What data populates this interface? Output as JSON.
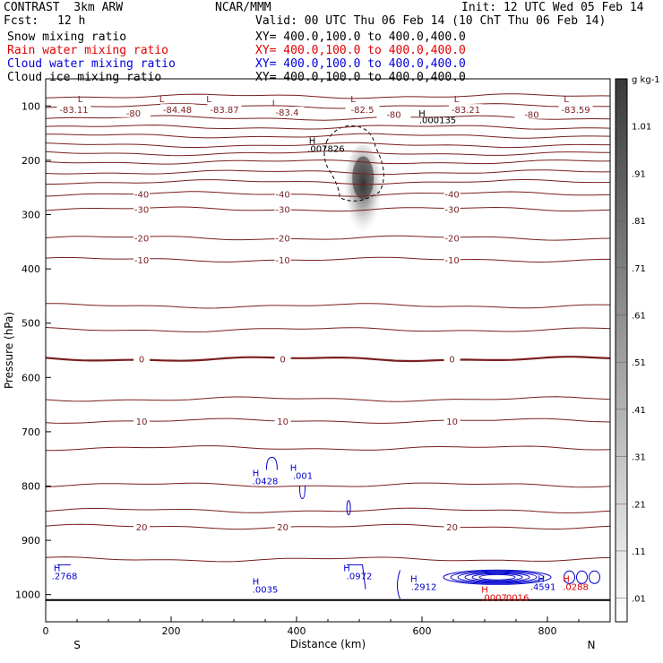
{
  "header": {
    "model": "CONTRAST  3km ARW",
    "center": "NCAR/MMM",
    "init": "Init: 12 UTC Wed 05 Feb 14",
    "fcst_label": "Fcst:",
    "fcst_value": "12 h",
    "valid": "Valid: 00 UTC Thu 06 Feb 14 (10 ChT Thu 06 Feb 14)"
  },
  "fields": [
    {
      "name": "Snow mixing ratio",
      "xy": "XY= 400.0,100.0 to 400.0,400.0"
    },
    {
      "name": "Rain water mixing ratio",
      "xy": "XY= 400.0,100.0 to 400.0,400.0"
    },
    {
      "name": "Cloud water mixing ratio",
      "xy": "XY= 400.0,100.0 to 400.0,400.0"
    },
    {
      "name": "Cloud ice mixing ratio",
      "xy": "XY= 400.0,100.0 to 400.0,400.0"
    }
  ],
  "colors": {
    "temp": "#7a1e1e",
    "cloud": "#0000cc",
    "rain": "#e00000",
    "ice": "#000000"
  },
  "chart_data": {
    "type": "contour",
    "xlabel": "Distance (km)",
    "ylabel": "Pressure (hPa)",
    "xlim": [
      0,
      900
    ],
    "ylim": [
      1050,
      50
    ],
    "xticks": [
      0,
      200,
      400,
      600,
      800
    ],
    "yticks": [
      100,
      200,
      300,
      400,
      500,
      600,
      700,
      800,
      900,
      1000
    ],
    "end_labels": {
      "left": "S",
      "right": "N"
    },
    "colorbar": {
      "unit": "g kg-1",
      "labels": [
        ".01",
        ".11",
        ".21",
        ".31",
        ".41",
        ".51",
        ".61",
        ".71",
        ".81",
        ".91",
        "1.01"
      ],
      "range": [
        0,
        1.1
      ]
    },
    "temperature_contours": [
      {
        "p": 82,
        "label": null
      },
      {
        "p": 100,
        "label": null
      },
      {
        "p": 122,
        "label": null
      },
      {
        "p": 139,
        "label": null
      },
      {
        "p": 155,
        "label": null
      },
      {
        "p": 172,
        "label": null
      },
      {
        "p": 187,
        "label": null
      },
      {
        "p": 203,
        "label": null
      },
      {
        "p": 222,
        "label": null
      },
      {
        "p": 240,
        "label": null
      },
      {
        "p": 262,
        "label": "-40"
      },
      {
        "p": 290,
        "label": "-30"
      },
      {
        "p": 343,
        "label": "-20"
      },
      {
        "p": 383,
        "label": "-10"
      },
      {
        "p": 468,
        "label": null
      },
      {
        "p": 512,
        "label": null
      },
      {
        "p": 566,
        "label": "0"
      },
      {
        "p": 640,
        "label": null
      },
      {
        "p": 680,
        "label": "10"
      },
      {
        "p": 730,
        "label": null
      },
      {
        "p": 798,
        "label": null
      },
      {
        "p": 845,
        "label": null
      },
      {
        "p": 875,
        "label": "20"
      },
      {
        "p": 935,
        "label": null
      }
    ],
    "upper_values": [
      {
        "text": "-83.11",
        "x": 45,
        "p": 108
      },
      {
        "text": "-84.48",
        "x": 210,
        "p": 108
      },
      {
        "text": "-83.87",
        "x": 285,
        "p": 108
      },
      {
        "text": "-83.4",
        "x": 385,
        "p": 113
      },
      {
        "text": "-82.5",
        "x": 505,
        "p": 108
      },
      {
        "text": "-83.21",
        "x": 670,
        "p": 108
      },
      {
        "text": "-83.59",
        "x": 845,
        "p": 108
      },
      {
        "text": "-80",
        "x": 140,
        "p": 114
      },
      {
        "text": "-80",
        "x": 555,
        "p": 117
      },
      {
        "text": "-80",
        "x": 775,
        "p": 117
      }
    ],
    "low_markers": [
      {
        "text": "L",
        "x": 55,
        "p": 86
      },
      {
        "text": "L",
        "x": 185,
        "p": 86
      },
      {
        "text": "L",
        "x": 260,
        "p": 86
      },
      {
        "text": "L",
        "x": 365,
        "p": 94
      },
      {
        "text": "L",
        "x": 490,
        "p": 86
      },
      {
        "text": "L",
        "x": 655,
        "p": 86
      },
      {
        "text": "L",
        "x": 830,
        "p": 86
      }
    ],
    "snow": {
      "max_label": ".007826",
      "max_x": 447,
      "max_p": 178,
      "shade_center_x": 506,
      "shade_center_p": 262,
      "peak": 0.95
    },
    "cloud_water_values": [
      {
        "text": ".0428",
        "x": 350,
        "p": 790
      },
      {
        "text": ".001",
        "x": 410,
        "p": 780
      },
      {
        "text": ".2768",
        "x": 30,
        "p": 965
      },
      {
        "text": ".0035",
        "x": 350,
        "p": 990
      },
      {
        "text": ".0972",
        "x": 500,
        "p": 965
      },
      {
        "text": ".2912",
        "x": 603,
        "p": 985
      },
      {
        "text": ".4591",
        "x": 793,
        "p": 985
      }
    ],
    "cloud_ice_values": [
      {
        "text": ".000135",
        "x": 625,
        "p": 125
      }
    ],
    "rain_values": [
      {
        "text": ".0007",
        "x": 715,
        "p": 1005
      },
      {
        "text": ".0016",
        "x": 750,
        "p": 1005
      },
      {
        "text": ".0288",
        "x": 845,
        "p": 985
      }
    ],
    "h_markers": [
      {
        "text": "H",
        "x": 600,
        "p": 113,
        "color": "ice"
      },
      {
        "text": "H",
        "x": 425,
        "p": 163,
        "color": "ice"
      },
      {
        "text": "H",
        "x": 335,
        "p": 775,
        "color": "cloud"
      },
      {
        "text": "H",
        "x": 395,
        "p": 765,
        "color": "cloud"
      },
      {
        "text": "H",
        "x": 18,
        "p": 950,
        "color": "cloud"
      },
      {
        "text": "H",
        "x": 335,
        "p": 975,
        "color": "cloud"
      },
      {
        "text": "H",
        "x": 480,
        "p": 950,
        "color": "cloud"
      },
      {
        "text": "H",
        "x": 587,
        "p": 970,
        "color": "cloud"
      },
      {
        "text": "H",
        "x": 790,
        "p": 970,
        "color": "cloud"
      },
      {
        "text": "H",
        "x": 700,
        "p": 990,
        "color": "rain"
      },
      {
        "text": "H",
        "x": 830,
        "p": 970,
        "color": "rain"
      }
    ]
  }
}
